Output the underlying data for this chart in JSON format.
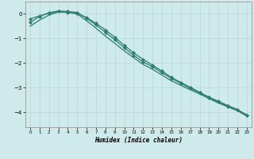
{
  "title": "",
  "xlabel": "Humidex (Indice chaleur)",
  "ylabel": "",
  "bg_color": "#ceeaea",
  "line_color": "#2e7d6e",
  "grid_color": "#b8d8d8",
  "xlim": [
    -0.5,
    23.5
  ],
  "ylim": [
    -4.6,
    0.5
  ],
  "xticks": [
    0,
    1,
    2,
    3,
    4,
    5,
    6,
    7,
    8,
    9,
    10,
    11,
    12,
    13,
    14,
    15,
    16,
    17,
    18,
    19,
    20,
    21,
    22,
    23
  ],
  "yticks": [
    0,
    -1,
    -2,
    -3,
    -4
  ],
  "series": [
    {
      "x": [
        0,
        1,
        2,
        3,
        4,
        5,
        6,
        7,
        8,
        9,
        10,
        11,
        12,
        13,
        14,
        15,
        16,
        17,
        18,
        19,
        20,
        21,
        22,
        23
      ],
      "y": [
        -0.2,
        -0.08,
        0.02,
        0.1,
        0.06,
        0.02,
        -0.15,
        -0.38,
        -0.65,
        -0.95,
        -1.28,
        -1.58,
        -1.85,
        -2.08,
        -2.32,
        -2.58,
        -2.78,
        -2.98,
        -3.18,
        -3.38,
        -3.55,
        -3.72,
        -3.88,
        -4.1
      ],
      "has_markers": true,
      "marker": "D"
    },
    {
      "x": [
        0,
        1,
        2,
        3,
        4,
        5,
        6,
        7,
        8,
        9,
        10,
        11,
        12,
        13,
        14,
        15,
        16,
        17,
        18,
        19,
        20,
        21,
        22,
        23
      ],
      "y": [
        -0.35,
        -0.1,
        0.05,
        0.12,
        0.1,
        0.06,
        -0.18,
        -0.45,
        -0.75,
        -1.05,
        -1.38,
        -1.68,
        -1.95,
        -2.15,
        -2.38,
        -2.62,
        -2.82,
        -3.02,
        -3.2,
        -3.4,
        -3.58,
        -3.75,
        -3.9,
        -4.12
      ],
      "has_markers": true,
      "marker": "D"
    },
    {
      "x": [
        0,
        1,
        2,
        3,
        4,
        5,
        6,
        7,
        8,
        9,
        10,
        11,
        12,
        13,
        14,
        15,
        16,
        17,
        18,
        19,
        20,
        21,
        22,
        23
      ],
      "y": [
        -0.5,
        -0.25,
        -0.05,
        0.08,
        0.06,
        0.0,
        -0.28,
        -0.58,
        -0.9,
        -1.2,
        -1.5,
        -1.78,
        -2.05,
        -2.25,
        -2.48,
        -2.72,
        -2.9,
        -3.08,
        -3.25,
        -3.44,
        -3.62,
        -3.78,
        -3.93,
        -4.15
      ],
      "has_markers": false,
      "marker": null
    }
  ]
}
